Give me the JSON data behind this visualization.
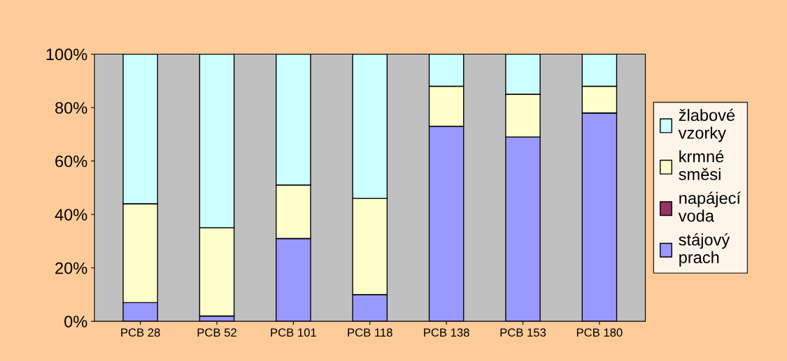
{
  "chart_data": {
    "type": "bar",
    "stacked": true,
    "categories": [
      "PCB 28",
      "PCB 52",
      "PCB 101",
      "PCB 118",
      "PCB 138",
      "PCB 153",
      "PCB 180"
    ],
    "series": [
      {
        "name": "stájový prach",
        "color": "#9999ff",
        "values": [
          7,
          2,
          31,
          10,
          73,
          69,
          78
        ]
      },
      {
        "name": "napájecí voda",
        "color": "#993366",
        "values": [
          0,
          0,
          0,
          0,
          0,
          0,
          0
        ]
      },
      {
        "name": "krmné směsi",
        "color": "#ffffcc",
        "values": [
          37,
          33,
          20,
          36,
          15,
          16,
          10
        ]
      },
      {
        "name": "žlabové vzorky",
        "color": "#ccffff",
        "values": [
          56,
          65,
          49,
          54,
          12,
          15,
          12
        ]
      }
    ],
    "ylim": [
      0,
      100
    ],
    "yticks": [
      {
        "value": 0,
        "label": "0%"
      },
      {
        "value": 20,
        "label": "20%"
      },
      {
        "value": 40,
        "label": "40%"
      },
      {
        "value": 60,
        "label": "60%"
      },
      {
        "value": 80,
        "label": "80%"
      },
      {
        "value": 100,
        "label": "100%"
      }
    ],
    "grid": false,
    "legend": "right"
  }
}
